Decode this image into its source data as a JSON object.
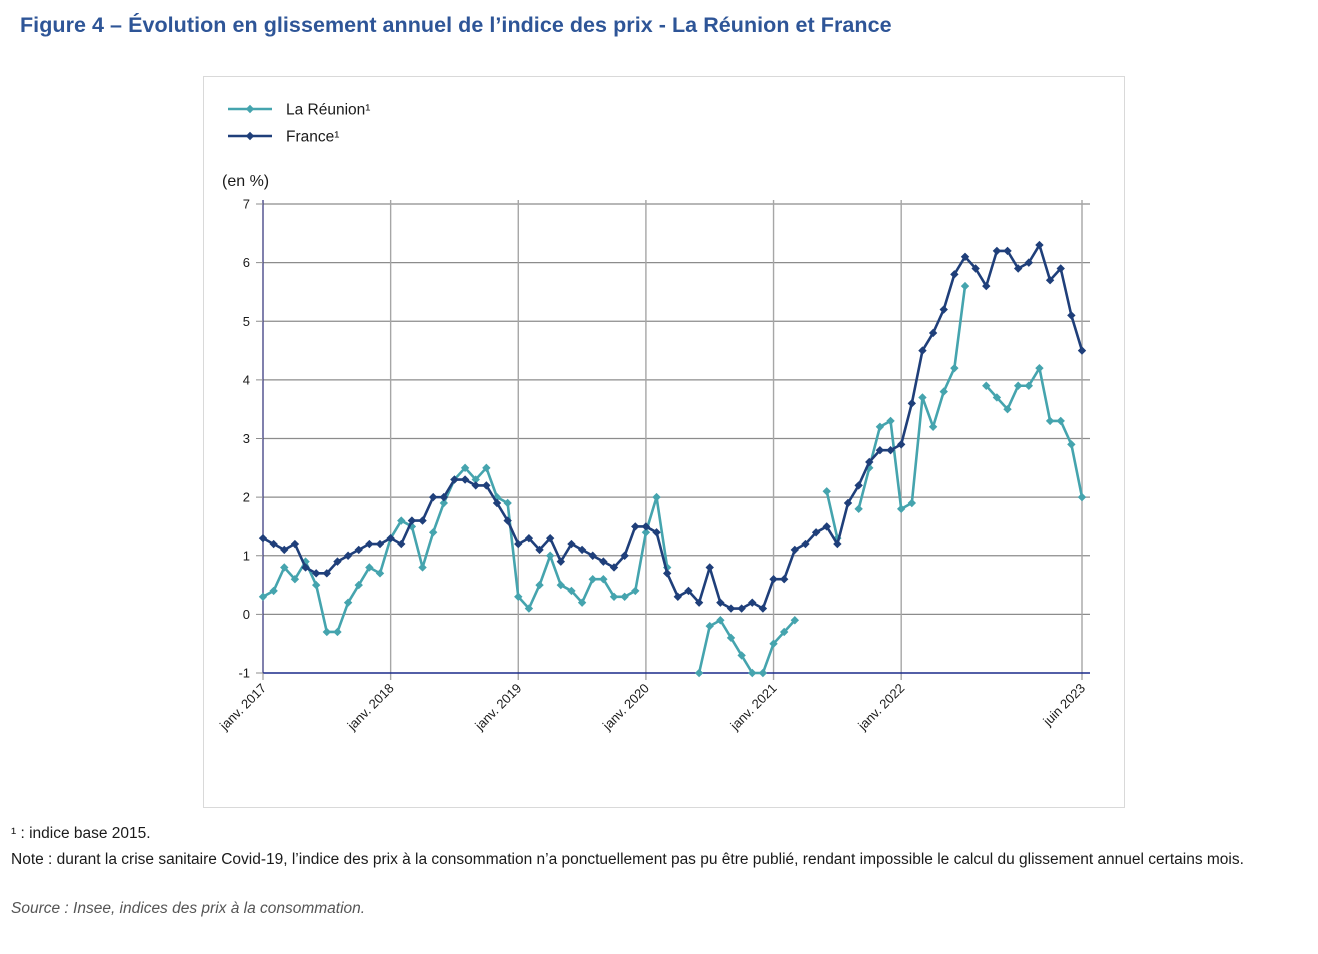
{
  "figure": {
    "title": "Figure 4 – Évolution en glissement annuel de l’indice des prix - La Réunion et France",
    "footnote_1": "¹ : indice base 2015.",
    "note": "Note : durant la crise sanitaire Covid-19, l’indice des prix à la consommation n’a ponctuellement pas pu être publié, rendant impossible le calcul du glissement annuel certains mois.",
    "source": "Source : Insee, indices des prix à la consommation."
  },
  "chart_data": {
    "type": "line",
    "title": "Évolution en glissement annuel de l’indice des prix - La Réunion et France",
    "ylabel": "(en %)",
    "xlabel": "",
    "ylim": [
      -1,
      7
    ],
    "yticks": [
      7,
      6,
      5,
      4,
      3,
      2,
      1,
      0,
      -1
    ],
    "ytick_labels": [
      "7",
      "6",
      "5",
      "4",
      "3",
      "2",
      "1",
      "0",
      "-1"
    ],
    "x_start": "2017-01",
    "x_end": "2023-06",
    "x_ticks": [
      {
        "month_index": 0,
        "label": "janv. 2017"
      },
      {
        "month_index": 12,
        "label": "janv. 2018"
      },
      {
        "month_index": 24,
        "label": "janv. 2019"
      },
      {
        "month_index": 36,
        "label": "janv. 2020"
      },
      {
        "month_index": 48,
        "label": "janv. 2021"
      },
      {
        "month_index": 60,
        "label": "janv. 2022"
      },
      {
        "month_index": 77,
        "label": "juin 2023"
      }
    ],
    "grid": true,
    "legend_position": "top-left",
    "series": [
      {
        "name": "La Réunion¹",
        "color": "#45a4ae",
        "marker": "diamond",
        "values": [
          0.3,
          0.4,
          0.8,
          0.6,
          0.9,
          0.5,
          -0.3,
          -0.3,
          0.2,
          0.5,
          0.8,
          0.7,
          1.3,
          1.6,
          1.5,
          0.8,
          1.4,
          1.9,
          2.3,
          2.5,
          2.3,
          2.5,
          2.0,
          1.9,
          0.3,
          0.1,
          0.5,
          1.0,
          0.5,
          0.4,
          0.2,
          0.6,
          0.6,
          0.3,
          0.3,
          0.4,
          1.4,
          2.0,
          0.8,
          null,
          null,
          -1.0,
          -0.2,
          -0.1,
          -0.4,
          -0.7,
          -1.0,
          -1.0,
          -0.5,
          -0.3,
          -0.1,
          null,
          null,
          2.1,
          1.3,
          null,
          1.8,
          2.5,
          3.2,
          3.3,
          1.8,
          1.9,
          3.7,
          3.2,
          3.8,
          4.2,
          5.6,
          null,
          3.9,
          3.7,
          3.5,
          3.9,
          3.9,
          4.2,
          3.3,
          3.3,
          2.9,
          2.0
        ]
      },
      {
        "name": "France¹",
        "color": "#1f3f7a",
        "marker": "diamond",
        "values": [
          1.3,
          1.2,
          1.1,
          1.2,
          0.8,
          0.7,
          0.7,
          0.9,
          1.0,
          1.1,
          1.2,
          1.2,
          1.3,
          1.2,
          1.6,
          1.6,
          2.0,
          2.0,
          2.3,
          2.3,
          2.2,
          2.2,
          1.9,
          1.6,
          1.2,
          1.3,
          1.1,
          1.3,
          0.9,
          1.2,
          1.1,
          1.0,
          0.9,
          0.8,
          1.0,
          1.5,
          1.5,
          1.4,
          0.7,
          0.3,
          0.4,
          0.2,
          0.8,
          0.2,
          0.1,
          0.1,
          0.2,
          0.1,
          0.6,
          0.6,
          1.1,
          1.2,
          1.4,
          1.5,
          1.2,
          1.9,
          2.2,
          2.6,
          2.8,
          2.8,
          2.9,
          3.6,
          4.5,
          4.8,
          5.2,
          5.8,
          6.1,
          5.9,
          5.6,
          6.2,
          6.2,
          5.9,
          6.0,
          6.3,
          5.7,
          5.9,
          5.1,
          4.5
        ]
      }
    ]
  }
}
